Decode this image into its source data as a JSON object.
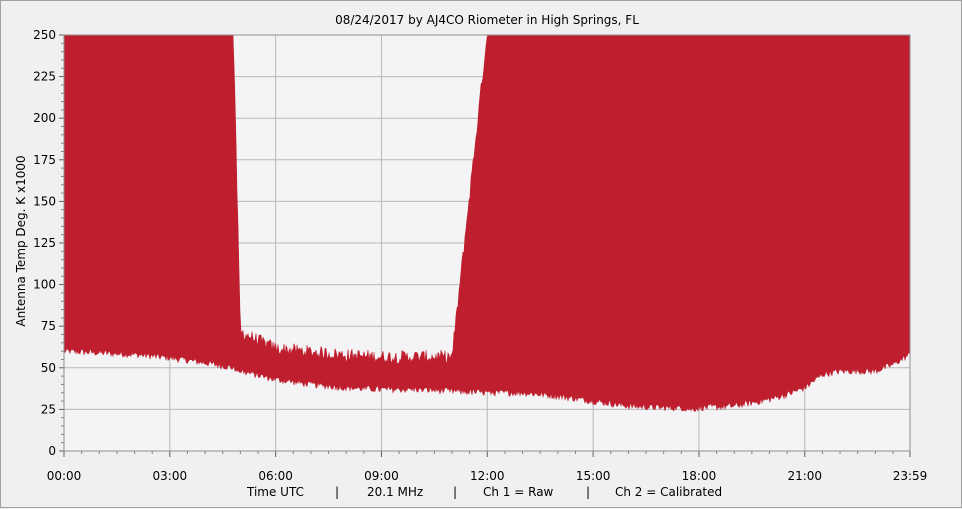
{
  "chart_data": {
    "type": "area",
    "title": "08/24/2017  by  AJ4CO Riometer  in  High Springs, FL",
    "ylabel": "Antenna Temp Deg. K x1000",
    "ylim": [
      0,
      250
    ],
    "xlim_hours": [
      0,
      23.9833
    ],
    "yticks": [
      0,
      25,
      50,
      75,
      100,
      125,
      150,
      175,
      200,
      225,
      250
    ],
    "ytick_labels": [
      "0",
      "25",
      "50",
      "75",
      "100",
      "125",
      "150",
      "175",
      "200",
      "225",
      "250"
    ],
    "xticks_hours": [
      0,
      3,
      6,
      9,
      12,
      15,
      18,
      21,
      23.9833
    ],
    "xtick_labels": [
      "00:00",
      "03:00",
      "06:00",
      "09:00",
      "12:00",
      "15:00",
      "18:00",
      "21:00",
      "23:59"
    ],
    "grid": true,
    "series": [
      {
        "color": "#be1e2d",
        "x_hours": [
          0,
          1,
          2,
          3,
          4,
          4.8,
          5,
          6,
          7,
          8,
          9,
          10,
          11,
          12,
          13,
          14,
          15,
          16,
          17,
          17.5,
          17.8,
          18,
          19,
          20,
          20.5,
          21,
          21.5,
          22,
          23,
          23.5,
          23.98
        ],
        "lower_envelope": [
          60,
          59,
          58,
          56,
          53,
          50,
          48,
          43,
          40,
          38,
          37,
          37,
          36,
          35,
          35,
          33,
          30,
          27,
          26,
          26,
          25,
          26,
          27,
          31,
          34,
          38,
          46,
          48,
          48,
          52,
          58
        ],
        "upper_envelope": [
          250,
          250,
          250,
          250,
          250,
          250,
          70,
          60,
          58,
          56,
          55,
          55,
          55,
          250,
          250,
          250,
          250,
          250,
          250,
          250,
          250,
          250,
          250,
          250,
          250,
          250,
          250,
          250,
          250,
          250,
          250
        ]
      }
    ]
  },
  "footer": {
    "time_label": "Time UTC",
    "freq_label": "20.1 MHz",
    "ch1_label": "Ch 1 = Raw",
    "ch2_label": "Ch 2 = Calibrated",
    "separator": "|"
  }
}
